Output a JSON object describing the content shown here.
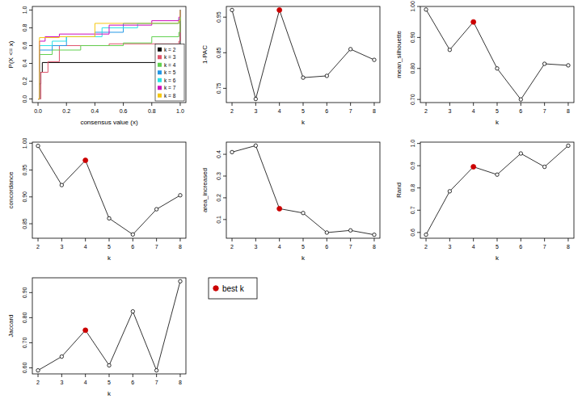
{
  "chart_data": [
    {
      "type": "line",
      "line_style": "step",
      "x_label": "consensus value (x)",
      "y_label": "P(X <= x)",
      "xlim": [
        -0.04,
        1.04
      ],
      "ylim": [
        -0.04,
        1.04
      ],
      "xticks": [
        {
          "value": 0,
          "label": "0.0"
        },
        {
          "value": 0.2,
          "label": "0.2"
        },
        {
          "value": 0.4,
          "label": "0.4"
        },
        {
          "value": 0.6,
          "label": "0.6"
        },
        {
          "value": 0.8,
          "label": "0.8"
        },
        {
          "value": 1,
          "label": "1.0"
        }
      ],
      "yticks": [
        {
          "value": 0,
          "label": "0.0"
        },
        {
          "value": 0.2,
          "label": "0.2"
        },
        {
          "value": 0.4,
          "label": "0.4"
        },
        {
          "value": 0.6,
          "label": "0.6"
        },
        {
          "value": 0.8,
          "label": "0.8"
        },
        {
          "value": 1,
          "label": "1.0"
        }
      ],
      "legend": "bottomright",
      "series": [
        {
          "name": "k = 2",
          "color": "#000000",
          "x": [
            0,
            0.01,
            0.02,
            0.03,
            0.99,
            1.0
          ],
          "values": [
            0,
            0.17,
            0.3,
            0.41,
            0.41,
            1.0
          ]
        },
        {
          "name": "k = 3",
          "color": "#DF536B",
          "x": [
            0,
            0.02,
            0.07,
            0.15,
            0.5,
            0.99,
            1.0
          ],
          "values": [
            0,
            0.3,
            0.42,
            0.6,
            0.62,
            0.65,
            1.0
          ]
        },
        {
          "name": "k = 4",
          "color": "#61D04F",
          "x": [
            0,
            0.01,
            0.1,
            0.3,
            0.6,
            0.8,
            0.99,
            1.0
          ],
          "values": [
            0,
            0.5,
            0.55,
            0.6,
            0.63,
            0.7,
            0.75,
            1.0
          ]
        },
        {
          "name": "k = 5",
          "color": "#2297E6",
          "x": [
            0,
            0.01,
            0.1,
            0.2,
            0.4,
            0.6,
            0.99,
            1.0
          ],
          "values": [
            0,
            0.55,
            0.6,
            0.7,
            0.75,
            0.85,
            0.88,
            1.0
          ]
        },
        {
          "name": "k = 6",
          "color": "#28E2E5",
          "x": [
            0,
            0.01,
            0.1,
            0.2,
            0.45,
            0.7,
            0.99,
            1.0
          ],
          "values": [
            0,
            0.6,
            0.65,
            0.7,
            0.8,
            0.85,
            0.9,
            1.0
          ]
        },
        {
          "name": "k = 7",
          "color": "#CD0BBC",
          "x": [
            0,
            0.01,
            0.05,
            0.15,
            0.5,
            0.8,
            0.99,
            1.0
          ],
          "values": [
            0,
            0.65,
            0.7,
            0.73,
            0.83,
            0.88,
            0.92,
            1.0
          ]
        },
        {
          "name": "k = 8",
          "color": "#F5C710",
          "x": [
            0,
            0.01,
            0.15,
            0.4,
            0.99,
            1.0
          ],
          "values": [
            0,
            0.69,
            0.7,
            0.85,
            0.88,
            1.0
          ]
        }
      ]
    },
    {
      "type": "line",
      "marker": "circle",
      "x_label": "k",
      "y_label": "1-PAC",
      "xlim": [
        1.76,
        8.24
      ],
      "ylim": [
        0.71,
        0.98
      ],
      "xticks": [
        2,
        3,
        4,
        5,
        6,
        7,
        8
      ],
      "yticks": [
        0.75,
        0.85,
        0.95
      ],
      "x": [
        2,
        3,
        4,
        5,
        6,
        7,
        8
      ],
      "values": [
        0.97,
        0.72,
        0.97,
        0.78,
        0.785,
        0.86,
        0.83
      ],
      "colors": [
        "#000000",
        "#000000",
        "#cc0000",
        "#000000",
        "#000000",
        "#000000",
        "#000000"
      ]
    },
    {
      "type": "line",
      "marker": "circle",
      "x_label": "k",
      "y_label": "mean_silhouette",
      "xlim": [
        1.76,
        8.24
      ],
      "ylim": [
        0.69,
        1.0
      ],
      "xticks": [
        2,
        3,
        4,
        5,
        6,
        7,
        8
      ],
      "yticks": [
        {
          "value": 0.7,
          "label": "0.70"
        },
        {
          "value": 0.8,
          "label": "0.80"
        },
        {
          "value": 0.9,
          "label": "0.90"
        },
        {
          "value": 1.0,
          "label": "1.00"
        }
      ],
      "x": [
        2,
        3,
        4,
        5,
        6,
        7,
        8
      ],
      "values": [
        0.99,
        0.86,
        0.95,
        0.8,
        0.7,
        0.815,
        0.81
      ],
      "colors": [
        "#000000",
        "#000000",
        "#cc0000",
        "#000000",
        "#000000",
        "#000000",
        "#000000"
      ]
    },
    {
      "type": "line",
      "marker": "circle",
      "x_label": "k",
      "y_label": "concordance",
      "xlim": [
        1.76,
        8.24
      ],
      "ylim": [
        0.823,
        1.002
      ],
      "xticks": [
        2,
        3,
        4,
        5,
        6,
        7,
        8
      ],
      "yticks": [
        0.85,
        {
          "value": 0.9,
          "label": "0.90"
        },
        0.95,
        {
          "value": 1.0,
          "label": "1.00"
        }
      ],
      "x": [
        2,
        3,
        4,
        5,
        6,
        7,
        8
      ],
      "values": [
        0.995,
        0.922,
        0.968,
        0.86,
        0.83,
        0.877,
        0.903
      ],
      "colors": [
        "#000000",
        "#000000",
        "#cc0000",
        "#000000",
        "#000000",
        "#000000",
        "#000000"
      ]
    },
    {
      "type": "line",
      "marker": "circle",
      "x_label": "k",
      "y_label": "area_increased",
      "xlim": [
        1.76,
        8.24
      ],
      "ylim": [
        0.014,
        0.456
      ],
      "xticks": [
        2,
        3,
        4,
        5,
        6,
        7,
        8
      ],
      "yticks": [
        0.1,
        0.2,
        0.3,
        0.4
      ],
      "x": [
        2,
        3,
        4,
        5,
        6,
        7,
        8
      ],
      "values": [
        0.41,
        0.44,
        0.15,
        0.13,
        0.04,
        0.05,
        0.03
      ],
      "colors": [
        "#000000",
        "#000000",
        "#cc0000",
        "#000000",
        "#000000",
        "#000000",
        "#000000"
      ]
    },
    {
      "type": "line",
      "marker": "circle",
      "x_label": "k",
      "y_label": "Rand",
      "xlim": [
        1.76,
        8.24
      ],
      "ylim": [
        0.574,
        1.006
      ],
      "xticks": [
        2,
        3,
        4,
        5,
        6,
        7,
        8
      ],
      "yticks": [
        0.6,
        0.7,
        0.8,
        0.9,
        {
          "value": 1.0,
          "label": "1.0"
        }
      ],
      "x": [
        2,
        3,
        4,
        5,
        6,
        7,
        8
      ],
      "values": [
        0.59,
        0.785,
        0.895,
        0.86,
        0.955,
        0.895,
        0.99
      ],
      "colors": [
        "#000000",
        "#000000",
        "#cc0000",
        "#000000",
        "#000000",
        "#000000",
        "#000000"
      ]
    },
    {
      "type": "line",
      "marker": "circle",
      "x_label": "k",
      "y_label": "Jaccard",
      "xlim": [
        1.76,
        8.24
      ],
      "ylim": [
        0.576,
        0.959
      ],
      "xticks": [
        2,
        3,
        4,
        5,
        6,
        7,
        8
      ],
      "yticks": [
        {
          "value": 0.6,
          "label": "0.60"
        },
        {
          "value": 0.7,
          "label": "0.70"
        },
        {
          "value": 0.8,
          "label": "0.80"
        },
        {
          "value": 0.9,
          "label": "0.90"
        }
      ],
      "x": [
        2,
        3,
        4,
        5,
        6,
        7,
        8
      ],
      "values": [
        0.59,
        0.645,
        0.75,
        0.61,
        0.825,
        0.59,
        0.945
      ],
      "colors": [
        "#000000",
        "#000000",
        "#cc0000",
        "#000000",
        "#000000",
        "#000000",
        "#000000"
      ]
    },
    {
      "type": "legend",
      "series": [
        {
          "name": "best k",
          "color": "#cc0000",
          "marker": "circle"
        }
      ]
    }
  ]
}
